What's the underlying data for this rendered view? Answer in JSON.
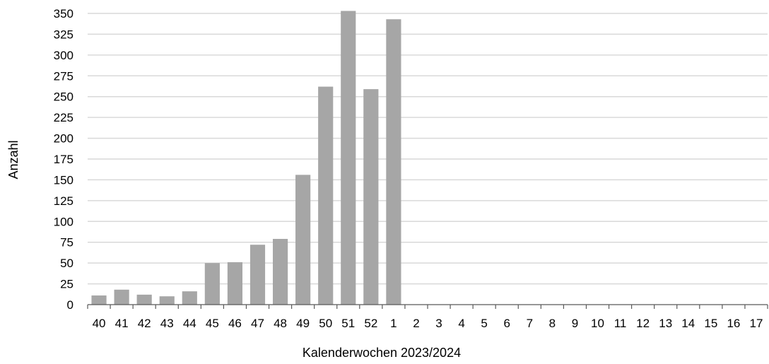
{
  "chart_data": {
    "type": "bar",
    "xlabel": "Kalenderwochen 2023/2024",
    "ylabel": "Anzahl",
    "ylim": [
      0,
      350
    ],
    "yticks": [
      "0",
      "25",
      "50",
      "75",
      "100",
      "125",
      "150",
      "175",
      "200",
      "225",
      "250",
      "275",
      "300",
      "325",
      "350"
    ],
    "grid": true,
    "legend": "none",
    "bar_color": "#a6a6a6",
    "grid_color": "#d9d9d9",
    "categories": [
      "40",
      "41",
      "42",
      "43",
      "44",
      "45",
      "46",
      "47",
      "48",
      "49",
      "50",
      "51",
      "52",
      "1",
      "2",
      "3",
      "4",
      "5",
      "6",
      "7",
      "8",
      "9",
      "10",
      "11",
      "12",
      "13",
      "14",
      "15",
      "16",
      "17"
    ],
    "values": [
      11,
      18,
      12,
      10,
      16,
      50,
      51,
      72,
      79,
      156,
      262,
      353,
      259,
      343,
      null,
      null,
      null,
      null,
      null,
      null,
      null,
      null,
      null,
      null,
      null,
      null,
      null,
      null,
      null,
      null
    ]
  }
}
